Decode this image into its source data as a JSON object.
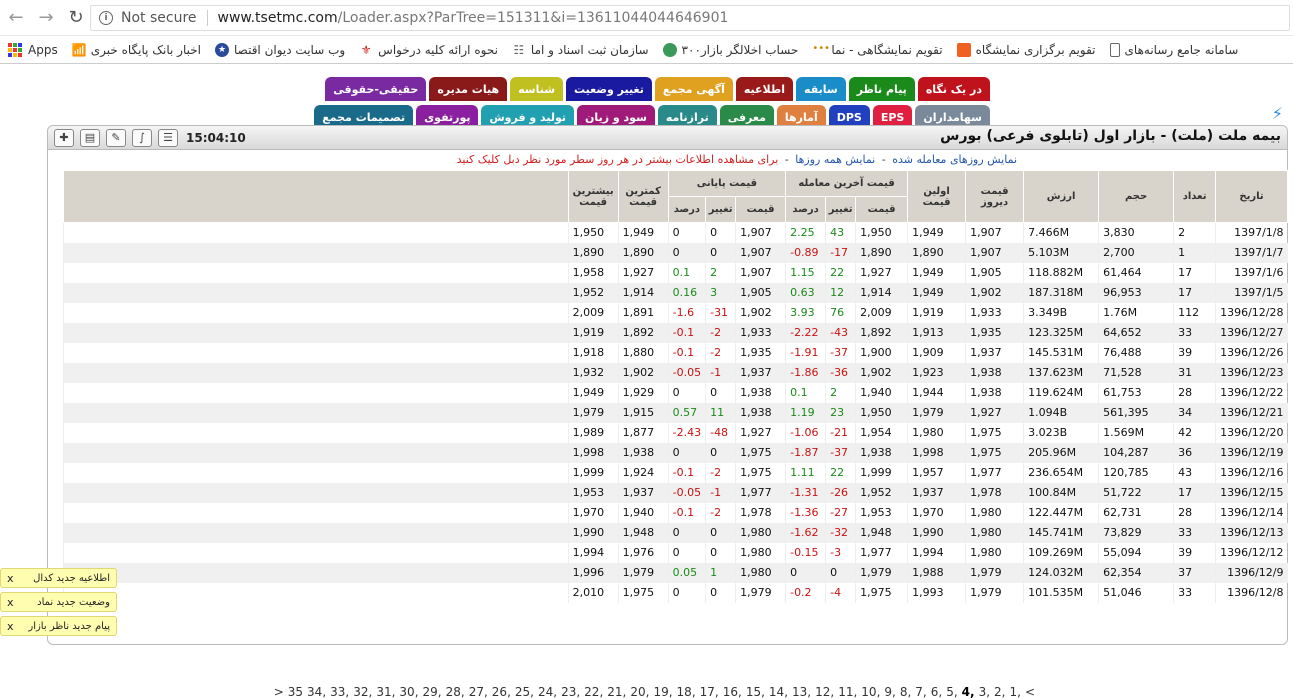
{
  "browser": {
    "not_secure": "Not secure",
    "url_host": "www.tsetmc.com",
    "url_rest": "/Loader.aspx?ParTree=151311&i=13611044044646901",
    "bookmarks": [
      {
        "label": "Apps",
        "icon": "apps-icon"
      },
      {
        "label": "اخبار بانک پایگاه خبری",
        "icon": "wifi-icon"
      },
      {
        "label": "وب سایت دیوان اقتصا",
        "icon": "star-icon"
      },
      {
        "label": "نحوه ارائه کلیه درخواس",
        "icon": "emblem-icon"
      },
      {
        "label": "سازمان ثبت اسناد و اما",
        "icon": "network-icon"
      },
      {
        "label": "۳۰۰حساب اخلالگر بازار",
        "icon": "globe-icon"
      },
      {
        "label": "تقویم نمایشگاهی - نما",
        "icon": "dots-icon"
      },
      {
        "label": "تقویم برگزاری نمایشگاه",
        "icon": "orange-square-icon"
      },
      {
        "label": "سامانه جامع رسانه‌های",
        "icon": "document-icon"
      }
    ]
  },
  "tabs_row1": [
    {
      "label": "در یک نگاه",
      "color": "#c0121c"
    },
    {
      "label": "پیام ناظر",
      "color": "#1a8a1a"
    },
    {
      "label": "سابقه",
      "color": "#1a8cc8"
    },
    {
      "label": "اطلاعیه",
      "color": "#9a1a1a"
    },
    {
      "label": "آگهی مجمع",
      "color": "#e0a020"
    },
    {
      "label": "تغییر وضعیت",
      "color": "#1a1aa0"
    },
    {
      "label": "شناسه",
      "color": "#c0c020"
    },
    {
      "label": "هیات مدیره",
      "color": "#8a1a1a"
    },
    {
      "label": "حقیقی-حقوقی",
      "color": "#7a2aa0"
    }
  ],
  "tabs_row2": [
    {
      "label": "سهامداران",
      "color": "#7a8a9a"
    },
    {
      "label": "EPS",
      "color": "#e02040"
    },
    {
      "label": "DPS",
      "color": "#2040c0"
    },
    {
      "label": "آمارها",
      "color": "#e08040"
    },
    {
      "label": "معرفی",
      "color": "#2a8a4a"
    },
    {
      "label": "ترازنامه",
      "color": "#2a8a8a"
    },
    {
      "label": "سود و زیان",
      "color": "#a01a7a"
    },
    {
      "label": "تولید و فروش",
      "color": "#20a0b0"
    },
    {
      "label": "پورتفوی",
      "color": "#8a20a0"
    },
    {
      "label": "تصمیمات مجمع",
      "color": "#1a6a8a"
    }
  ],
  "panel": {
    "title": "بیمه ملت (ملت) - بازار اول (تابلوی فرعی) بورس",
    "time": "15:04:10",
    "subline_link1": "نمایش روزهای معامله شده",
    "subline_link2": "نمایش همه روزها",
    "subline_red": "برای مشاهده اطلاعات بیشتر در هر روز سطر مورد نظر دبل کلیک کنید"
  },
  "table": {
    "headers": {
      "date": "تاریخ",
      "count": "تعداد",
      "volume": "حجم",
      "value": "ارزش",
      "yesterday": "قیمت دیروز",
      "first": "اولین قیمت",
      "last_group": "قیمت آخرین معامله",
      "close_group": "قیمت پایانی",
      "price": "قیمت",
      "change": "تغییر",
      "percent": "درصد",
      "low": "کمترین قیمت",
      "high": "بیشترین قیمت"
    },
    "rows": [
      [
        "1397/1/8",
        "2",
        "3,830",
        "7.466M",
        "1,907",
        "1,949",
        "1,950",
        "43",
        "2.25",
        "1,907",
        "0",
        "0",
        "1,949",
        "1,950"
      ],
      [
        "1397/1/7",
        "1",
        "2,700",
        "5.103M",
        "1,907",
        "1,890",
        "1,890",
        "-17",
        "-0.89",
        "1,907",
        "0",
        "0",
        "1,890",
        "1,890"
      ],
      [
        "1397/1/6",
        "17",
        "61,464",
        "118.882M",
        "1,905",
        "1,949",
        "1,927",
        "22",
        "1.15",
        "1,907",
        "2",
        "0.1",
        "1,927",
        "1,958"
      ],
      [
        "1397/1/5",
        "17",
        "96,953",
        "187.318M",
        "1,902",
        "1,949",
        "1,914",
        "12",
        "0.63",
        "1,905",
        "3",
        "0.16",
        "1,914",
        "1,952"
      ],
      [
        "1396/12/28",
        "112",
        "1.76M",
        "3.349B",
        "1,933",
        "1,919",
        "2,009",
        "76",
        "3.93",
        "1,902",
        "-31",
        "-1.6",
        "1,891",
        "2,009"
      ],
      [
        "1396/12/27",
        "33",
        "64,652",
        "123.325M",
        "1,935",
        "1,913",
        "1,892",
        "-43",
        "-2.22",
        "1,933",
        "-2",
        "-0.1",
        "1,892",
        "1,919"
      ],
      [
        "1396/12/26",
        "39",
        "76,488",
        "145.531M",
        "1,937",
        "1,909",
        "1,900",
        "-37",
        "-1.91",
        "1,935",
        "-2",
        "-0.1",
        "1,880",
        "1,918"
      ],
      [
        "1396/12/23",
        "31",
        "71,528",
        "137.623M",
        "1,938",
        "1,923",
        "1,902",
        "-36",
        "-1.86",
        "1,937",
        "-1",
        "-0.05",
        "1,902",
        "1,932"
      ],
      [
        "1396/12/22",
        "28",
        "61,753",
        "119.624M",
        "1,938",
        "1,944",
        "1,940",
        "2",
        "0.1",
        "1,938",
        "0",
        "0",
        "1,929",
        "1,949"
      ],
      [
        "1396/12/21",
        "34",
        "561,395",
        "1.094B",
        "1,927",
        "1,979",
        "1,950",
        "23",
        "1.19",
        "1,938",
        "11",
        "0.57",
        "1,915",
        "1,979"
      ],
      [
        "1396/12/20",
        "42",
        "1.569M",
        "3.023B",
        "1,975",
        "1,980",
        "1,954",
        "-21",
        "-1.06",
        "1,927",
        "-48",
        "-2.43",
        "1,877",
        "1,989"
      ],
      [
        "1396/12/19",
        "36",
        "104,287",
        "205.96M",
        "1,975",
        "1,998",
        "1,938",
        "-37",
        "-1.87",
        "1,975",
        "0",
        "0",
        "1,938",
        "1,998"
      ],
      [
        "1396/12/16",
        "43",
        "120,785",
        "236.654M",
        "1,977",
        "1,957",
        "1,999",
        "22",
        "1.11",
        "1,975",
        "-2",
        "-0.1",
        "1,924",
        "1,999"
      ],
      [
        "1396/12/15",
        "17",
        "51,722",
        "100.84M",
        "1,978",
        "1,937",
        "1,952",
        "-26",
        "-1.31",
        "1,977",
        "-1",
        "-0.05",
        "1,937",
        "1,953"
      ],
      [
        "1396/12/14",
        "28",
        "62,731",
        "122.447M",
        "1,980",
        "1,970",
        "1,953",
        "-27",
        "-1.36",
        "1,978",
        "-2",
        "-0.1",
        "1,940",
        "1,970"
      ],
      [
        "1396/12/13",
        "33",
        "73,829",
        "145.741M",
        "1,980",
        "1,990",
        "1,948",
        "-32",
        "-1.62",
        "1,980",
        "0",
        "0",
        "1,948",
        "1,990"
      ],
      [
        "1396/12/12",
        "39",
        "55,094",
        "109.269M",
        "1,980",
        "1,994",
        "1,977",
        "-3",
        "-0.15",
        "1,980",
        "0",
        "0",
        "1,976",
        "1,994"
      ],
      [
        "1396/12/9",
        "37",
        "62,354",
        "124.032M",
        "1,979",
        "1,988",
        "1,979",
        "0",
        "0",
        "1,980",
        "1",
        "0.05",
        "1,979",
        "1,996"
      ],
      [
        "1396/12/8",
        "33",
        "51,046",
        "101.535M",
        "1,979",
        "1,993",
        "1,975",
        "-4",
        "-0.2",
        "1,979",
        "0",
        "0",
        "1,975",
        "2,010"
      ]
    ]
  },
  "pager": {
    "prev": "<",
    "pages": [
      "1,",
      "2,",
      "3,",
      "4,",
      "5,",
      "6,",
      "7,",
      "8,",
      "9,",
      "10,",
      "11,",
      "12,",
      "13,",
      "14,",
      "15,",
      "16,",
      "17,",
      "18,",
      "19,",
      "20,",
      "21,",
      "22,",
      "23,",
      "24,",
      "25,",
      "26,",
      "27,",
      "28,",
      "29,",
      "30,",
      "31,",
      "32,",
      "33,",
      "34,",
      "35"
    ],
    "current": "4,",
    "next": ">"
  },
  "notifications": [
    {
      "label": "اطلاعیه جدید کدال",
      "close": "x"
    },
    {
      "label": "وضعیت جدید نماد",
      "close": "x"
    },
    {
      "label": "پیام جدید ناظر بازار",
      "close": "x"
    }
  ]
}
